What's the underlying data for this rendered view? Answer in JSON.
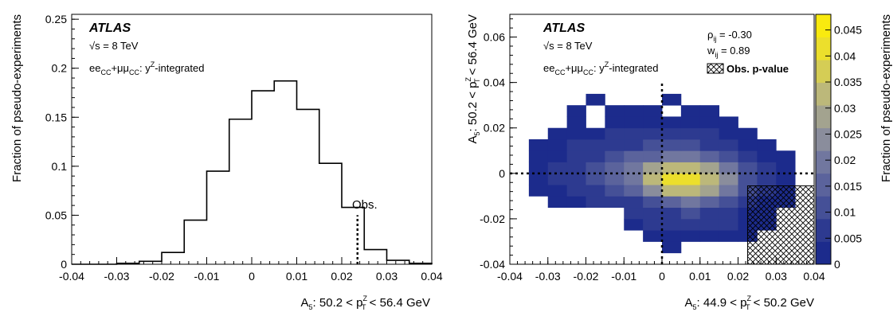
{
  "figure": {
    "left_panel": {
      "atlas_label": "ATLAS",
      "energy_label": "√s = 8 TeV",
      "channel": {
        "a": "ee",
        "a_sub": "CC",
        "b": "+μμ",
        "b_sub": "CC",
        "c": ": y",
        "c_sup": "Z",
        "d": "-integrated"
      },
      "obs_label": "Obs.",
      "ylabel": "Fraction of pseudo-experiments",
      "xlabel": {
        "a": "A",
        "a_sub": "5",
        "b": ": 50.2 < p",
        "b_sup": "Z",
        "b_sub": "T",
        "c": " < 56.4 GeV"
      },
      "xticks": [
        "-0.04",
        "-0.03",
        "-0.02",
        "-0.01",
        "0",
        "0.01",
        "0.02",
        "0.03",
        "0.04"
      ],
      "yticks": [
        "0",
        "0.05",
        "0.1",
        "0.15",
        "0.2",
        "0.25"
      ]
    },
    "right_panel": {
      "atlas_label": "ATLAS",
      "energy_label": "√s = 8 TeV",
      "channel": {
        "a": "ee",
        "a_sub": "CC",
        "b": "+μμ",
        "b_sub": "CC",
        "c": ": y",
        "c_sup": "Z",
        "d": "-integrated"
      },
      "rho": {
        "sym": "ρ",
        "sub": "ij",
        "val": " = -0.30"
      },
      "w": {
        "sym": "w",
        "sub": "ij",
        "val": " = 0.89"
      },
      "legend_obs": "Obs. p-value",
      "xlabel": {
        "a": "A",
        "a_sub": "5",
        "b": ": 44.9 < p",
        "b_sup": "Z",
        "b_sub": "T",
        "c": " < 50.2 GeV"
      },
      "ylabel": {
        "a": "A",
        "a_sub": "5",
        "b": ": 50.2 < p",
        "b_sup": "Z",
        "b_sub": "T",
        "c": " < 56.4 GeV"
      },
      "xticks": [
        "-0.04",
        "-0.03",
        "-0.02",
        "-0.01",
        "0",
        "0.01",
        "0.02",
        "0.03",
        "0.04"
      ],
      "yticks": [
        "-0.04",
        "-0.02",
        "0",
        "0.02",
        "0.04",
        "0.06"
      ],
      "zticks": [
        "0",
        "0.005",
        "0.01",
        "0.015",
        "0.02",
        "0.025",
        "0.03",
        "0.035",
        "0.04",
        "0.045"
      ],
      "zlabel": "Fraction of pseudo-experiments"
    }
  },
  "colors": {
    "histogram": "#000000",
    "palette": [
      "#1c2b8c",
      "#2d3a90",
      "#455097",
      "#5b639c",
      "#71779f",
      "#8a8d9c",
      "#a3a38f",
      "#bcb87a",
      "#d5cd55",
      "#ecdf2c",
      "#f9ea0f"
    ]
  },
  "chart_data": [
    {
      "type": "bar",
      "style": "step-histogram",
      "bin_edges": [
        -0.04,
        -0.035,
        -0.03,
        -0.025,
        -0.02,
        -0.015,
        -0.01,
        -0.005,
        0,
        0.005,
        0.01,
        0.015,
        0.02,
        0.025,
        0.03,
        0.035,
        0.04
      ],
      "values": [
        0,
        0,
        0.001,
        0.003,
        0.012,
        0.045,
        0.095,
        0.148,
        0.177,
        0.187,
        0.158,
        0.103,
        0.058,
        0.015,
        0.004,
        0.001
      ],
      "observed_value": 0.0235,
      "xlim": [
        -0.04,
        0.04
      ],
      "ylim": [
        0,
        0.255
      ],
      "grid": false
    },
    {
      "type": "heatmap",
      "x_edges": [
        -0.04,
        -0.035,
        -0.03,
        -0.025,
        -0.02,
        -0.015,
        -0.01,
        -0.005,
        0,
        0.005,
        0.01,
        0.015,
        0.02,
        0.025,
        0.03,
        0.035,
        0.04
      ],
      "y_edges": [
        -0.04,
        -0.035,
        -0.03,
        -0.025,
        -0.02,
        -0.015,
        -0.01,
        -0.005,
        0,
        0.005,
        0.01,
        0.015,
        0.02,
        0.025,
        0.03,
        0.035,
        0.04,
        0.045,
        0.05,
        0.055,
        0.06,
        0.065,
        0.07
      ],
      "cells": [
        [
          0.0,
          -0.035,
          0.002
        ],
        [
          -0.005,
          -0.03,
          0.002
        ],
        [
          0.0,
          -0.03,
          0.002
        ],
        [
          0.005,
          -0.03,
          0.002
        ],
        [
          0.01,
          -0.03,
          0.002
        ],
        [
          0.015,
          -0.03,
          0.002
        ],
        [
          0.02,
          -0.03,
          0.002
        ],
        [
          -0.01,
          -0.025,
          0.002
        ],
        [
          -0.005,
          -0.025,
          0.003
        ],
        [
          0.0,
          -0.025,
          0.003
        ],
        [
          0.005,
          -0.025,
          0.004
        ],
        [
          0.01,
          -0.025,
          0.003
        ],
        [
          0.015,
          -0.025,
          0.003
        ],
        [
          0.02,
          -0.025,
          0.002
        ],
        [
          0.025,
          -0.025,
          0.002
        ],
        [
          -0.01,
          -0.02,
          0.003
        ],
        [
          -0.005,
          -0.02,
          0.005
        ],
        [
          0.0,
          -0.02,
          0.007
        ],
        [
          0.005,
          -0.02,
          0.008
        ],
        [
          0.01,
          -0.02,
          0.006
        ],
        [
          0.015,
          -0.02,
          0.004
        ],
        [
          0.02,
          -0.02,
          0.002
        ],
        [
          0.025,
          -0.02,
          0.002
        ],
        [
          -0.03,
          -0.015,
          0.002
        ],
        [
          -0.025,
          -0.015,
          0.002
        ],
        [
          -0.02,
          -0.015,
          0.003
        ],
        [
          -0.015,
          -0.015,
          0.004
        ],
        [
          -0.01,
          -0.015,
          0.007
        ],
        [
          -0.005,
          -0.015,
          0.011
        ],
        [
          0.0,
          -0.015,
          0.015
        ],
        [
          0.005,
          -0.015,
          0.017
        ],
        [
          0.01,
          -0.015,
          0.014
        ],
        [
          0.015,
          -0.015,
          0.009
        ],
        [
          0.02,
          -0.015,
          0.005
        ],
        [
          0.025,
          -0.015,
          0.002
        ],
        [
          0.03,
          -0.015,
          0.002
        ],
        [
          -0.035,
          -0.01,
          0.002
        ],
        [
          -0.03,
          -0.01,
          0.002
        ],
        [
          -0.025,
          -0.01,
          0.004
        ],
        [
          -0.02,
          -0.01,
          0.006
        ],
        [
          -0.015,
          -0.01,
          0.01
        ],
        [
          -0.01,
          -0.01,
          0.016
        ],
        [
          -0.005,
          -0.01,
          0.024
        ],
        [
          0.0,
          -0.01,
          0.032
        ],
        [
          0.005,
          -0.01,
          0.036
        ],
        [
          0.01,
          -0.01,
          0.03
        ],
        [
          0.015,
          -0.01,
          0.019
        ],
        [
          0.02,
          -0.01,
          0.01
        ],
        [
          0.025,
          -0.01,
          0.004
        ],
        [
          0.03,
          -0.01,
          0.002
        ],
        [
          -0.035,
          -0.005,
          0.002
        ],
        [
          -0.03,
          -0.005,
          0.003
        ],
        [
          -0.025,
          -0.005,
          0.005
        ],
        [
          -0.02,
          -0.005,
          0.008
        ],
        [
          -0.015,
          -0.005,
          0.013
        ],
        [
          -0.01,
          -0.005,
          0.021
        ],
        [
          -0.005,
          -0.005,
          0.032
        ],
        [
          0.0,
          -0.005,
          0.042
        ],
        [
          0.005,
          -0.005,
          0.045
        ],
        [
          0.01,
          -0.005,
          0.036
        ],
        [
          0.015,
          -0.005,
          0.022
        ],
        [
          0.02,
          -0.005,
          0.011
        ],
        [
          0.025,
          -0.005,
          0.004
        ],
        [
          0.03,
          -0.005,
          0.002
        ],
        [
          -0.035,
          0.0,
          0.002
        ],
        [
          -0.03,
          0.0,
          0.003
        ],
        [
          -0.025,
          0.0,
          0.005
        ],
        [
          -0.02,
          0.0,
          0.008
        ],
        [
          -0.015,
          0.0,
          0.013
        ],
        [
          -0.01,
          0.0,
          0.019
        ],
        [
          -0.005,
          0.0,
          0.027
        ],
        [
          0.0,
          0.0,
          0.034
        ],
        [
          0.005,
          0.0,
          0.035
        ],
        [
          0.01,
          0.0,
          0.028
        ],
        [
          0.015,
          0.0,
          0.017
        ],
        [
          0.02,
          0.0,
          0.008
        ],
        [
          0.025,
          0.0,
          0.003
        ],
        [
          0.03,
          0.0,
          0.002
        ],
        [
          -0.035,
          0.005,
          0.002
        ],
        [
          -0.03,
          0.005,
          0.002
        ],
        [
          -0.025,
          0.005,
          0.004
        ],
        [
          -0.02,
          0.005,
          0.006
        ],
        [
          -0.015,
          0.005,
          0.009
        ],
        [
          -0.01,
          0.005,
          0.012
        ],
        [
          -0.005,
          0.005,
          0.016
        ],
        [
          0.0,
          0.005,
          0.019
        ],
        [
          0.005,
          0.005,
          0.018
        ],
        [
          0.01,
          0.005,
          0.014
        ],
        [
          0.015,
          0.005,
          0.009
        ],
        [
          0.02,
          0.005,
          0.005
        ],
        [
          0.025,
          0.005,
          0.002
        ],
        [
          0.03,
          0.005,
          0.002
        ],
        [
          -0.035,
          0.01,
          0.002
        ],
        [
          -0.03,
          0.01,
          0.002
        ],
        [
          -0.025,
          0.01,
          0.003
        ],
        [
          -0.02,
          0.01,
          0.004
        ],
        [
          -0.015,
          0.01,
          0.005
        ],
        [
          -0.01,
          0.01,
          0.007
        ],
        [
          -0.005,
          0.01,
          0.008
        ],
        [
          0.0,
          0.01,
          0.009
        ],
        [
          0.005,
          0.01,
          0.008
        ],
        [
          0.01,
          0.01,
          0.006
        ],
        [
          0.015,
          0.01,
          0.004
        ],
        [
          0.02,
          0.01,
          0.002
        ],
        [
          0.025,
          0.01,
          0.002
        ],
        [
          -0.03,
          0.015,
          0.002
        ],
        [
          -0.025,
          0.015,
          0.002
        ],
        [
          -0.02,
          0.015,
          0.002
        ],
        [
          -0.015,
          0.015,
          0.003
        ],
        [
          -0.01,
          0.015,
          0.003
        ],
        [
          -0.005,
          0.015,
          0.004
        ],
        [
          0.0,
          0.015,
          0.004
        ],
        [
          0.005,
          0.015,
          0.003
        ],
        [
          0.01,
          0.015,
          0.003
        ],
        [
          0.015,
          0.015,
          0.002
        ],
        [
          0.02,
          0.015,
          0.002
        ],
        [
          -0.025,
          0.02,
          0.002
        ],
        [
          -0.015,
          0.02,
          0.002
        ],
        [
          -0.01,
          0.02,
          0.002
        ],
        [
          -0.005,
          0.02,
          0.002
        ],
        [
          0.0,
          0.02,
          0.002
        ],
        [
          0.005,
          0.02,
          0.002
        ],
        [
          0.01,
          0.02,
          0.002
        ],
        [
          0.015,
          0.02,
          0.002
        ],
        [
          -0.025,
          0.025,
          0.002
        ],
        [
          -0.015,
          0.025,
          0.002
        ],
        [
          -0.01,
          0.025,
          0.002
        ],
        [
          -0.005,
          0.025,
          0.002
        ],
        [
          0.005,
          0.025,
          0.002
        ],
        [
          0.01,
          0.025,
          0.002
        ],
        [
          -0.02,
          0.03,
          0.002
        ],
        [
          0.0,
          0.03,
          0.002
        ]
      ],
      "obs_pvalue_region": [
        [
          0.0225,
          -0.04
        ],
        [
          0.04,
          -0.04
        ],
        [
          0.04,
          -0.0055
        ],
        [
          0.0225,
          -0.0055
        ]
      ],
      "observed_point": [
        0.0,
        0.0
      ],
      "xlim": [
        -0.04,
        0.04
      ],
      "ylim": [
        -0.04,
        0.07
      ],
      "zlim": [
        0,
        0.048
      ],
      "grid": false
    }
  ]
}
